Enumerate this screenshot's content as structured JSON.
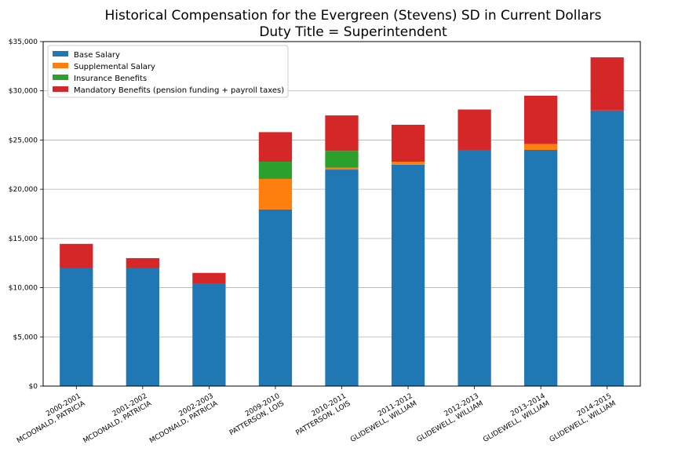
{
  "chart_data": {
    "type": "bar",
    "stacked": true,
    "title": "Historical Compensation for the Evergreen (Stevens) SD in Current Dollars",
    "subtitle": "Duty Title = Superintendent",
    "categories": [
      [
        "2000-2001",
        "MCDONALD, PATRICIA"
      ],
      [
        "2001-2002",
        "MCDONALD, PATRICIA"
      ],
      [
        "2002-2003",
        "MCDONALD, PATRICIA"
      ],
      [
        "2009-2010",
        "PATTERSON, LOIS"
      ],
      [
        "2010-2011",
        "PATTERSON, LOIS"
      ],
      [
        "2011-2012",
        "GLIDEWELL, WILLIAM"
      ],
      [
        "2012-2013",
        "GLIDEWELL, WILLIAM"
      ],
      [
        "2013-2014",
        "GLIDEWELL, WILLIAM"
      ],
      [
        "2014-2015",
        "GLIDEWELL, WILLIAM"
      ]
    ],
    "series": [
      {
        "name": "Base Salary",
        "color": "#1f77b4",
        "values": [
          12000,
          12000,
          10400,
          17950,
          22000,
          22500,
          24000,
          24000,
          28000
        ]
      },
      {
        "name": "Supplemental Salary",
        "color": "#ff7f0e",
        "values": [
          0,
          0,
          0,
          3100,
          200,
          300,
          0,
          600,
          0
        ]
      },
      {
        "name": "Insurance Benefits",
        "color": "#2ca02c",
        "values": [
          0,
          0,
          0,
          1750,
          1700,
          0,
          0,
          0,
          0
        ]
      },
      {
        "name": "Mandatory Benefits (pension funding + payroll taxes)",
        "color": "#d62728",
        "values": [
          2450,
          1000,
          1100,
          3000,
          3600,
          3750,
          4100,
          4900,
          5400
        ]
      }
    ],
    "yticks": [
      "$0",
      "$5,000",
      "$10,000",
      "$15,000",
      "$20,000",
      "$25,000",
      "$30,000",
      "$35,000"
    ],
    "ylim": [
      0,
      35000
    ],
    "grid": "horizontal",
    "legend_position": "top-left"
  }
}
